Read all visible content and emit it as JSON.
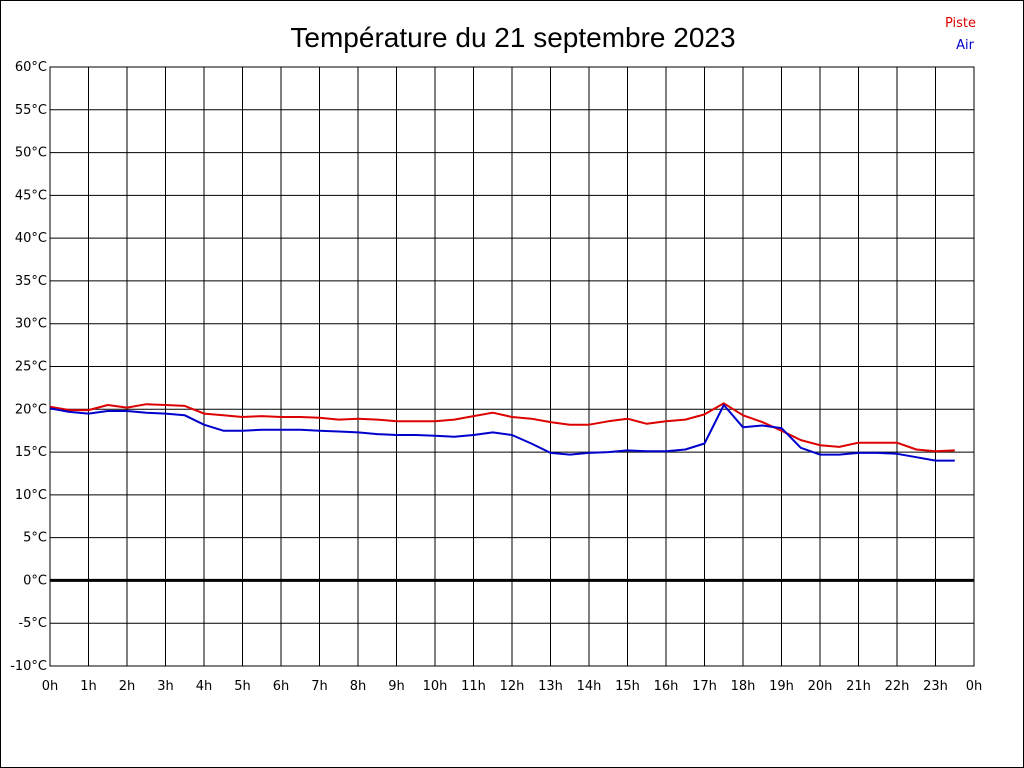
{
  "chart_data": {
    "type": "line",
    "title": "Température du 21 septembre 2023",
    "xlabel": "",
    "ylabel": "",
    "x_unit": "hour",
    "xlim": [
      0,
      24
    ],
    "ylim": [
      -10,
      60
    ],
    "x_tick_labels": [
      "0h",
      "1h",
      "2h",
      "3h",
      "4h",
      "5h",
      "6h",
      "7h",
      "8h",
      "9h",
      "10h",
      "11h",
      "12h",
      "13h",
      "14h",
      "15h",
      "16h",
      "17h",
      "18h",
      "19h",
      "20h",
      "21h",
      "22h",
      "23h",
      "0h"
    ],
    "y_tick_values": [
      -10,
      -5,
      0,
      5,
      10,
      15,
      20,
      25,
      30,
      35,
      40,
      45,
      50,
      55,
      60
    ],
    "y_tick_labels": [
      "-10°C",
      "-5°C",
      "0°C",
      "5°C",
      "10°C",
      "15°C",
      "20°C",
      "25°C",
      "30°C",
      "35°C",
      "40°C",
      "45°C",
      "50°C",
      "55°C",
      "60°C"
    ],
    "grid": true,
    "zero_line": true,
    "legend_position": "top-right",
    "series": [
      {
        "name": "Piste",
        "color": "#dd0000",
        "x": [
          0,
          0.5,
          1,
          1.5,
          2,
          2.5,
          3,
          3.5,
          4,
          4.5,
          5,
          5.5,
          6,
          6.5,
          7,
          7.5,
          8,
          8.5,
          9,
          9.5,
          10,
          10.5,
          11,
          11.5,
          12,
          12.5,
          13,
          13.5,
          14,
          14.5,
          15,
          15.5,
          16,
          16.5,
          17,
          17.5,
          18,
          18.5,
          19,
          19.5,
          20,
          20.5,
          21,
          21.5,
          22,
          22.5,
          23,
          23.5
        ],
        "y": [
          20.3,
          19.9,
          19.9,
          20.5,
          20.2,
          20.6,
          20.5,
          20.4,
          19.5,
          19.3,
          19.1,
          19.2,
          19.1,
          19.1,
          19.0,
          18.8,
          18.9,
          18.8,
          18.6,
          18.6,
          18.6,
          18.8,
          19.2,
          19.6,
          19.1,
          18.9,
          18.5,
          18.2,
          18.2,
          18.6,
          18.9,
          18.3,
          18.6,
          18.8,
          19.4,
          20.7,
          19.3,
          18.5,
          17.5,
          16.4,
          15.8,
          15.6,
          16.1,
          16.1,
          16.1,
          15.3,
          15.1,
          15.2
        ]
      },
      {
        "name": "Air",
        "color": "#0000cc",
        "x": [
          0,
          0.5,
          1,
          1.5,
          2,
          2.5,
          3,
          3.5,
          4,
          4.5,
          5,
          5.5,
          6,
          6.5,
          7,
          7.5,
          8,
          8.5,
          9,
          9.5,
          10,
          10.5,
          11,
          11.5,
          12,
          12.5,
          13,
          13.5,
          14,
          14.5,
          15,
          15.5,
          16,
          16.5,
          17,
          17.5,
          18,
          18.5,
          19,
          19.5,
          20,
          20.5,
          21,
          21.5,
          22,
          22.5,
          23,
          23.5
        ],
        "y": [
          20.1,
          19.7,
          19.5,
          19.8,
          19.8,
          19.6,
          19.5,
          19.3,
          18.2,
          17.5,
          17.5,
          17.6,
          17.6,
          17.6,
          17.5,
          17.4,
          17.3,
          17.1,
          17.0,
          17.0,
          16.9,
          16.8,
          17.0,
          17.3,
          17.0,
          16.0,
          14.9,
          14.7,
          14.9,
          15.0,
          15.2,
          15.1,
          15.1,
          15.3,
          16.0,
          20.5,
          17.9,
          18.1,
          17.8,
          15.5,
          14.7,
          14.7,
          14.9,
          14.9,
          14.8,
          14.4,
          14.0,
          14.0
        ]
      }
    ]
  }
}
